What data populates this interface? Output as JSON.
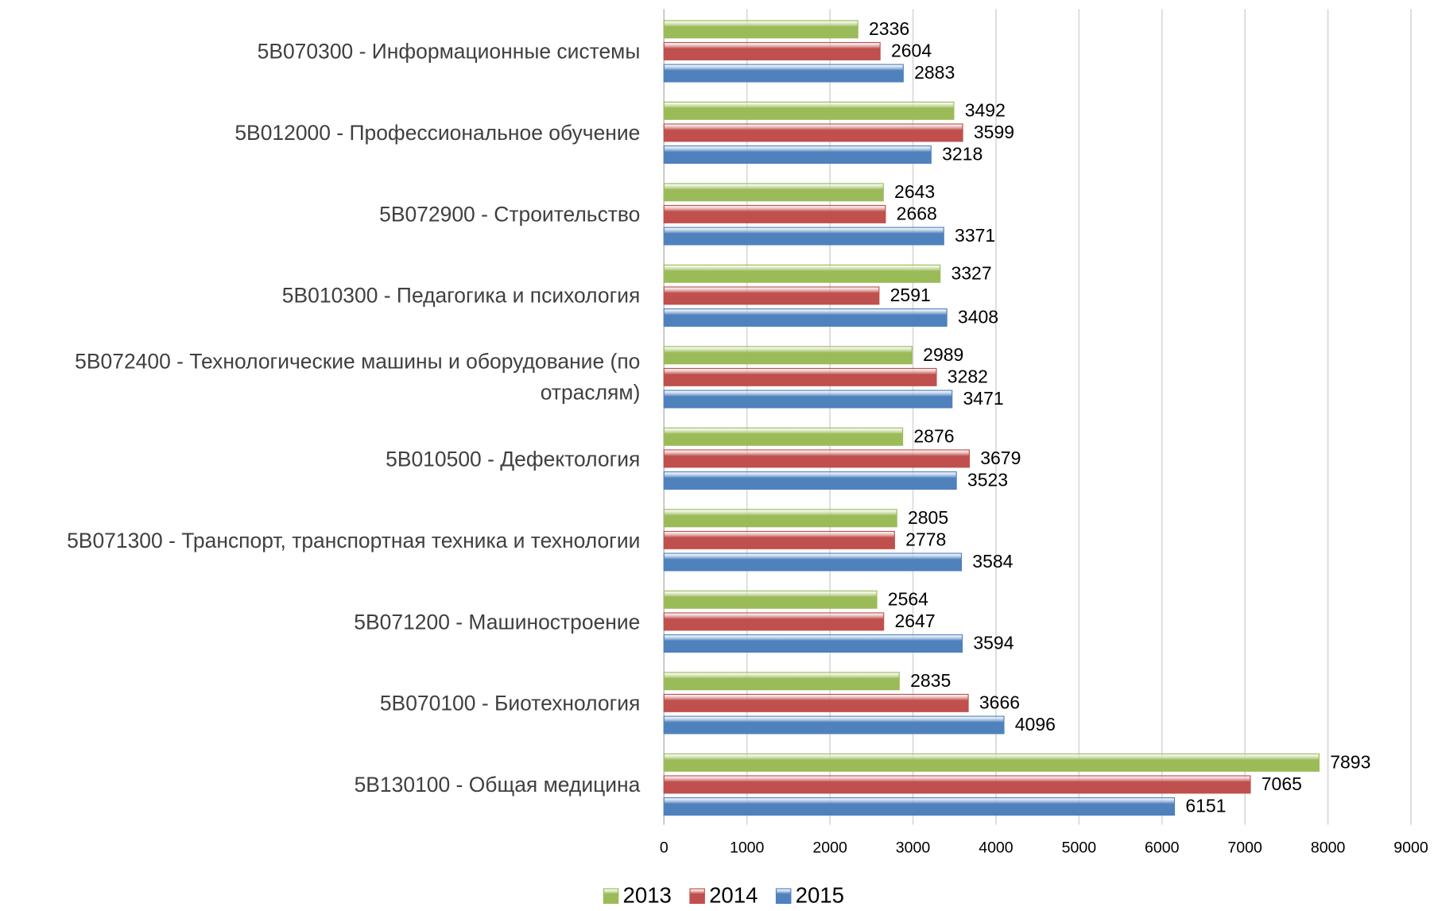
{
  "chart_data": {
    "type": "bar",
    "orientation": "horizontal",
    "categories": [
      "5B070300 - Информационные системы",
      "5B012000 - Профессиональное обучение",
      "5B072900 - Строительство",
      "5B010300 - Педагогика и психология",
      "5B072400 - Технологические машины и оборудование (по отраслям)",
      "5B010500 - Дефектология",
      "5B071300 - Транспорт, транспортная техника и технологии",
      "5B071200 - Машиностроение",
      "5B070100 - Биотехнология",
      "5B130100 - Общая медицина"
    ],
    "series": [
      {
        "name": "2013",
        "color": "#9bbb59",
        "values": [
          2336,
          3492,
          2643,
          3327,
          2989,
          2876,
          2805,
          2564,
          2835,
          7893
        ]
      },
      {
        "name": "2014",
        "color": "#c0504d",
        "values": [
          2604,
          3599,
          2668,
          2591,
          3282,
          3679,
          2778,
          2647,
          3666,
          7065
        ]
      },
      {
        "name": "2015",
        "color": "#4f81bd",
        "values": [
          2883,
          3218,
          3371,
          3408,
          3471,
          3523,
          3584,
          3594,
          4096,
          6151
        ]
      }
    ],
    "xlim": [
      0,
      9000
    ],
    "xticks": [
      0,
      1000,
      2000,
      3000,
      4000,
      5000,
      6000,
      7000,
      8000,
      9000
    ],
    "grid": true,
    "legend": "bottom"
  }
}
